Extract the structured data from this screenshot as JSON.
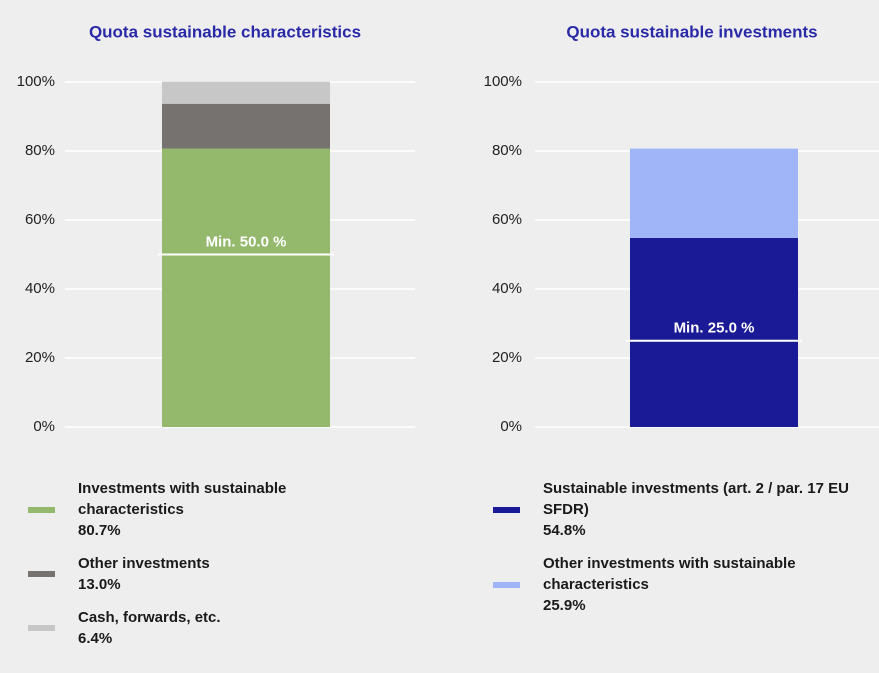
{
  "chart_data": [
    {
      "type": "stacked_bar",
      "title": "Quota sustainable characteristics",
      "ylim": [
        0,
        100
      ],
      "yticks": [
        {
          "value": 0,
          "label": "0%"
        },
        {
          "value": 20,
          "label": "20%"
        },
        {
          "value": 40,
          "label": "40%"
        },
        {
          "value": 60,
          "label": "60%"
        },
        {
          "value": 80,
          "label": "80%"
        },
        {
          "value": 100,
          "label": "100%"
        }
      ],
      "grid": true,
      "threshold": {
        "value": 50,
        "label": "Min. 50.0 %"
      },
      "series": [
        {
          "name": "Investments with sustainable characteristics",
          "color": "#94b96d",
          "values": [
            80.7
          ],
          "value_labels": [
            "80.7%"
          ]
        },
        {
          "name": "Other investments",
          "color": "#767270",
          "values": [
            13.0
          ],
          "value_labels": [
            "13.0%"
          ]
        },
        {
          "name": "Cash, forwards, etc.",
          "color": "#c8c7c7",
          "values": [
            6.4
          ],
          "value_labels": [
            "6.4%"
          ]
        }
      ]
    },
    {
      "type": "stacked_bar",
      "title": "Quota sustainable investments",
      "ylim": [
        0,
        100
      ],
      "yticks": [
        {
          "value": 0,
          "label": "0%"
        },
        {
          "value": 20,
          "label": "20%"
        },
        {
          "value": 40,
          "label": "40%"
        },
        {
          "value": 60,
          "label": "60%"
        },
        {
          "value": 80,
          "label": "80%"
        },
        {
          "value": 100,
          "label": "100%"
        }
      ],
      "grid": true,
      "threshold": {
        "value": 25,
        "label": "Min. 25.0 %"
      },
      "series": [
        {
          "name": "Sustainable investments (art. 2 / par. 17 EU SFDR)",
          "color": "#1a1a96",
          "values": [
            54.8
          ],
          "value_labels": [
            "54.8%"
          ]
        },
        {
          "name": "Other investments with sustainable characteristics",
          "color": "#a0b4f8",
          "values": [
            25.9
          ],
          "value_labels": [
            "25.9%"
          ]
        }
      ]
    }
  ]
}
